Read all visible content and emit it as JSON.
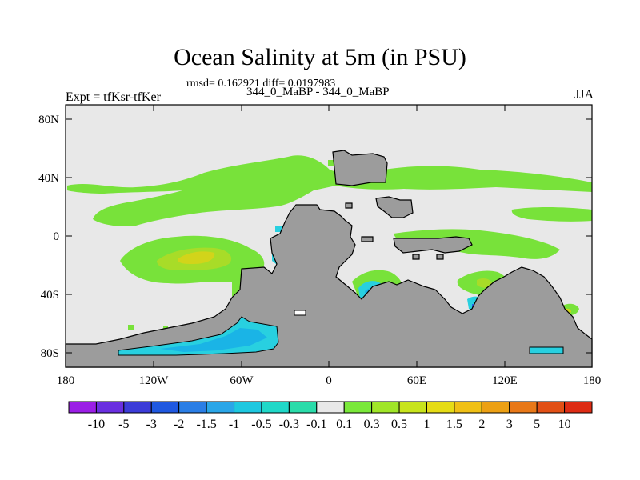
{
  "title": "Ocean Salinity at 5m (in PSU)",
  "stats_line": "rmsd= 0.162921 diff= 0.0197983",
  "cases_line": "344_0_MaBP - 344_0_MaBP",
  "left_label": "Expt = tfKsr-tfKer",
  "right_label": "JJA",
  "lat_ticks": [
    "80N",
    "40N",
    "0",
    "40S",
    "80S"
  ],
  "lon_ticks": [
    "180",
    "120W",
    "60W",
    "0",
    "60E",
    "120E",
    "180"
  ],
  "colorbar": {
    "labels": [
      "-10",
      "-5",
      "-3",
      "-2",
      "-1.5",
      "-1",
      "-0.5",
      "-0.3",
      "-0.1",
      "0.1",
      "0.3",
      "0.5",
      "1",
      "1.5",
      "2",
      "3",
      "5",
      "10"
    ],
    "colors": [
      "#9b1ee6",
      "#6a2fe0",
      "#3c3cd8",
      "#1f58e0",
      "#2a7ee6",
      "#2aa6e8",
      "#1ec8e0",
      "#20d8c8",
      "#2adcaa",
      "#e8e8e8",
      "#7ae83a",
      "#a0e628",
      "#c8e41c",
      "#e6dc16",
      "#f0c016",
      "#eca014",
      "#e87818",
      "#e25016",
      "#de2c14"
    ]
  },
  "map_colors": {
    "background": "#e8e8e8",
    "land": "#9c9c9c",
    "positive_light": "#78e23a",
    "positive_mid": "#a8dc28",
    "positive_high": "#d2d41a",
    "negative_light": "#28d0e0",
    "negative_mid": "#1ab4e6",
    "negative_strong": "#2a64e4"
  }
}
